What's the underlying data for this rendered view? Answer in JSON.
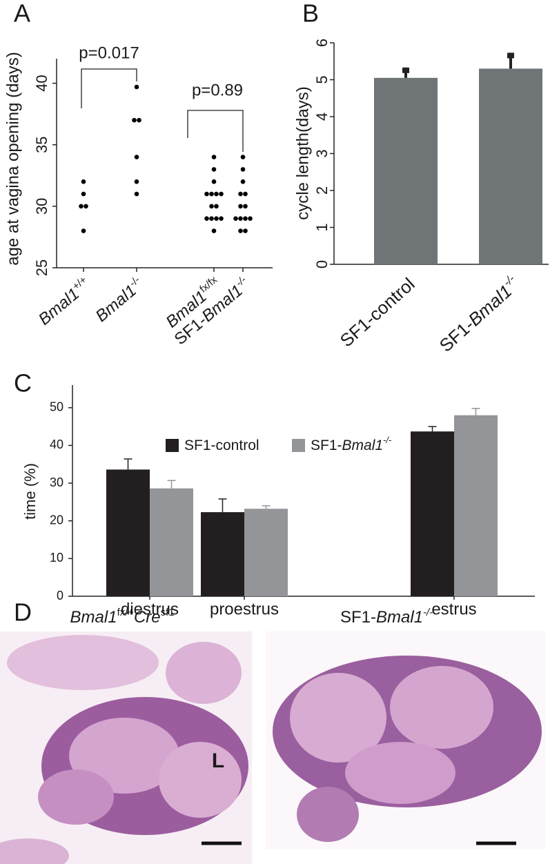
{
  "chart_data": [
    {
      "type": "strip",
      "label": "A",
      "ylabel": "age at vagina opening (days)",
      "categories": [
        [
          {
            "text": "Bmal1",
            "style": "italic"
          },
          {
            "text": "+/+",
            "style": "sup"
          }
        ],
        [
          {
            "text": "Bmal1",
            "style": "italic"
          },
          {
            "text": "-/-",
            "style": "sup"
          }
        ],
        [
          {
            "text": "Bmal1",
            "style": "italic"
          },
          {
            "text": "fx/fx",
            "style": "sup"
          }
        ],
        [
          {
            "text": "SF1-",
            "style": "plain"
          },
          {
            "text": "Bmal1",
            "style": "italic"
          },
          {
            "text": "-/-",
            "style": "italic sup"
          }
        ]
      ],
      "values": [
        [
          32,
          31,
          30,
          30,
          28
        ],
        [
          39.7,
          37,
          37,
          34,
          32,
          31
        ],
        [
          34,
          33,
          32,
          31,
          31,
          31,
          31,
          30,
          30,
          29,
          29,
          29,
          29,
          28
        ],
        [
          34,
          33,
          32,
          31,
          31,
          30,
          30,
          29,
          29,
          29,
          29,
          28,
          28
        ]
      ],
      "color": "#000000",
      "ylim": [
        25,
        42
      ],
      "yticks": [
        25,
        30,
        35,
        40
      ],
      "annotations": [
        "p=0.017",
        "p=0.89"
      ]
    },
    {
      "type": "bar",
      "label": "B",
      "ylabel": "cycle length(days)",
      "categories": [
        [
          {
            "text": "SF1-control",
            "style": "plain"
          }
        ],
        [
          {
            "text": "SF1-",
            "style": "plain"
          },
          {
            "text": "Bmal1",
            "style": "italic"
          },
          {
            "text": "-/-",
            "style": "italic sup"
          }
        ]
      ],
      "values": [
        5.05,
        5.3
      ],
      "errors": [
        0.28,
        0.43
      ],
      "color": "#6f7476",
      "ylim": [
        0,
        6
      ],
      "yticks": [
        0,
        1,
        2,
        3,
        4,
        5,
        6
      ]
    },
    {
      "type": "grouped-bar",
      "label": "C",
      "ylabel": "time (%)",
      "categories": [
        "diestrus",
        "proestrus",
        "estrus"
      ],
      "series": [
        {
          "name": [
            {
              "text": "SF1-control",
              "style": "plain"
            }
          ],
          "color": "#231f20",
          "values": [
            33.6,
            22.3,
            43.7
          ],
          "errors": [
            2.8,
            3.5,
            1.3
          ]
        },
        {
          "name": [
            {
              "text": "SF1-",
              "style": "plain"
            },
            {
              "text": "Bmal1",
              "style": "italic"
            },
            {
              "text": "-/-",
              "style": "italic sup"
            }
          ],
          "color": "#939598",
          "values": [
            28.6,
            23.2,
            48.0
          ],
          "errors": [
            2.1,
            0.8,
            1.8
          ]
        }
      ],
      "ylim": [
        0,
        56
      ],
      "yticks": [
        0,
        10,
        20,
        30,
        40,
        50
      ]
    }
  ],
  "panel_d": {
    "label": "D",
    "images": [
      {
        "caption": [
          {
            "text": "Bmal1",
            "style": "italic"
          },
          {
            "text": "fx/+",
            "style": "sup"
          },
          {
            "text": "Cre",
            "style": "italic"
          },
          {
            "text": "sf1",
            "style": "sup"
          }
        ],
        "annotation": "L"
      },
      {
        "caption": [
          {
            "text": "SF1-",
            "style": "plain"
          },
          {
            "text": "Bmal1",
            "style": "italic"
          },
          {
            "text": "-/-",
            "style": "italic sup"
          }
        ]
      }
    ]
  }
}
